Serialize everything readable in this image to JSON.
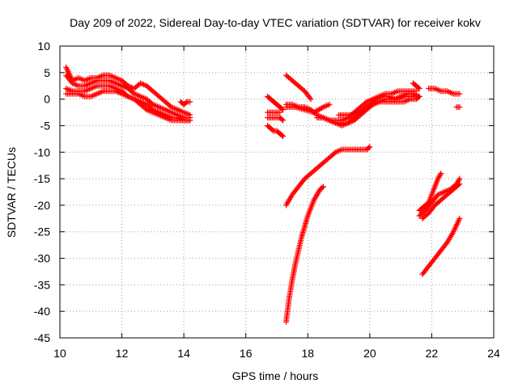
{
  "chart_data": {
    "type": "scatter",
    "title": "Day 209 of 2022, Sidereal Day-to-day VTEC variation (SDTVAR) for receiver kokv",
    "xlabel": "GPS time / hours",
    "ylabel": "SDTVAR / TECUs",
    "xlim": [
      10,
      24
    ],
    "ylim": [
      -45,
      10
    ],
    "xticks": [
      "10",
      "12",
      "14",
      "16",
      "18",
      "20",
      "22",
      "24"
    ],
    "yticks": [
      "10",
      "5",
      "0",
      "-5",
      "-10",
      "-15",
      "-20",
      "-25",
      "-30",
      "-35",
      "-40",
      "-45"
    ],
    "grid": true,
    "marker": "plus",
    "series_color": "#ff0000",
    "series": [
      {
        "x": [
          10.2,
          10.4,
          10.6,
          10.8,
          11.0,
          11.2,
          11.4,
          11.6,
          11.8,
          12.0,
          12.2,
          12.4,
          12.6,
          12.8,
          13.0,
          13.2,
          13.4,
          13.6,
          13.8,
          14.0,
          14.2
        ],
        "y": [
          6.0,
          3.5,
          4.0,
          3.5,
          4.0,
          4.0,
          4.5,
          4.5,
          4.0,
          3.5,
          2.5,
          2.0,
          3.0,
          2.5,
          1.5,
          0.5,
          -0.5,
          -1.5,
          -2.0,
          -2.5,
          -3.0
        ]
      },
      {
        "x": [
          10.2,
          10.4,
          10.6,
          10.8,
          11.0,
          11.2,
          11.4,
          11.6,
          11.8,
          12.0,
          12.2,
          12.4,
          12.6,
          12.8,
          13.0,
          13.2,
          13.4,
          13.6,
          13.8,
          14.0,
          14.2
        ],
        "y": [
          4.5,
          3.0,
          2.5,
          2.5,
          3.0,
          3.5,
          3.5,
          3.5,
          3.0,
          2.5,
          2.0,
          1.0,
          0.5,
          0.0,
          -1.0,
          -1.5,
          -2.0,
          -2.5,
          -3.0,
          -3.5,
          -3.5
        ]
      },
      {
        "x": [
          10.2,
          10.4,
          10.6,
          10.8,
          11.0,
          11.2,
          11.4,
          11.6,
          11.8,
          12.0,
          12.2,
          12.4,
          12.6,
          12.8,
          13.0,
          13.2,
          13.4,
          13.6,
          13.8,
          14.0,
          14.2
        ],
        "y": [
          2.0,
          1.5,
          1.5,
          1.5,
          2.0,
          2.5,
          2.5,
          2.5,
          2.0,
          1.5,
          0.5,
          0.0,
          -0.5,
          -1.0,
          -2.0,
          -2.5,
          -3.0,
          -3.5,
          -3.5,
          -4.0,
          -4.0
        ]
      },
      {
        "x": [
          10.2,
          10.4,
          10.6,
          10.8,
          11.0,
          11.2,
          11.4,
          11.6,
          11.8,
          12.0,
          12.2,
          12.4,
          12.6,
          12.8,
          13.0,
          13.2,
          13.4,
          13.6,
          13.8,
          14.0,
          14.2
        ],
        "y": [
          1.0,
          1.0,
          1.0,
          0.5,
          0.5,
          1.0,
          1.5,
          1.5,
          1.5,
          1.0,
          0.5,
          0.0,
          -1.0,
          -2.0,
          -2.5,
          -3.0,
          -3.5,
          -4.0,
          -4.0,
          -4.0,
          -4.0
        ]
      },
      {
        "x": [
          13.9,
          14.0,
          14.1,
          14.2
        ],
        "y": [
          -0.5,
          -1.0,
          -0.5,
          -0.5
        ]
      },
      {
        "x": [
          16.7,
          16.8,
          16.9,
          17.0,
          17.1,
          17.2
        ],
        "y": [
          0.5,
          0.0,
          -0.5,
          -1.0,
          -1.5,
          -2.0
        ]
      },
      {
        "x": [
          16.7,
          16.8,
          16.9,
          17.0,
          17.1,
          17.2
        ],
        "y": [
          -3.5,
          -3.5,
          -3.5,
          -3.5,
          -3.5,
          -4.0
        ]
      },
      {
        "x": [
          16.7,
          16.8,
          16.9,
          17.0,
          17.1,
          17.2
        ],
        "y": [
          -5.0,
          -5.5,
          -6.0,
          -6.0,
          -6.5,
          -7.0
        ]
      },
      {
        "x": [
          16.7,
          16.9,
          17.1
        ],
        "y": [
          -2.5,
          -2.5,
          -2.5
        ]
      },
      {
        "x": [
          17.3,
          17.5,
          17.7,
          17.9,
          18.1
        ],
        "y": [
          4.5,
          3.5,
          2.5,
          1.5,
          0.0
        ]
      },
      {
        "x": [
          17.3,
          17.6,
          17.9,
          18.2,
          18.5,
          18.7
        ],
        "y": [
          -1.5,
          -1.5,
          -2.0,
          -2.5,
          -1.5,
          -1.0
        ]
      },
      {
        "x": [
          17.3,
          17.5,
          17.7,
          17.9,
          18.1,
          18.3,
          18.5,
          18.7,
          18.9,
          19.1,
          19.3,
          19.5,
          19.7,
          19.9,
          20.1,
          20.3,
          20.5,
          20.7,
          20.9,
          21.1,
          21.3,
          21.5
        ],
        "y": [
          -1.0,
          -1.0,
          -1.5,
          -1.5,
          -2.0,
          -3.0,
          -3.5,
          -4.0,
          -4.0,
          -4.0,
          -3.5,
          -2.5,
          -1.5,
          -0.5,
          0.0,
          0.5,
          1.0,
          1.0,
          1.5,
          1.5,
          1.5,
          1.5
        ]
      },
      {
        "x": [
          18.3,
          18.5,
          18.7,
          18.9,
          19.1,
          19.3,
          19.5,
          19.7,
          19.9,
          20.1,
          20.3,
          20.5,
          20.7,
          20.9,
          21.1,
          21.3,
          21.5
        ],
        "y": [
          -3.5,
          -3.5,
          -4.0,
          -4.5,
          -4.5,
          -4.5,
          -3.5,
          -2.5,
          -1.5,
          -1.0,
          -0.5,
          0.0,
          0.0,
          0.0,
          0.5,
          0.5,
          0.5
        ]
      },
      {
        "x": [
          18.7,
          18.9,
          19.1,
          19.3,
          19.5,
          19.7,
          19.9,
          20.1,
          20.3,
          20.5,
          20.7,
          20.9,
          21.1,
          21.3,
          21.5,
          21.6
        ],
        "y": [
          -4.0,
          -4.5,
          -5.0,
          -4.5,
          -4.0,
          -3.0,
          -2.0,
          -1.0,
          -0.5,
          -0.5,
          -0.5,
          -0.5,
          -0.5,
          0.0,
          0.0,
          0.5
        ]
      },
      {
        "x": [
          19.0,
          19.2,
          19.4,
          19.6,
          19.8,
          20.0,
          20.2,
          20.4,
          20.6,
          20.8,
          21.0,
          21.2,
          21.4,
          21.6
        ],
        "y": [
          -3.0,
          -3.0,
          -3.0,
          -2.5,
          -2.0,
          -1.0,
          0.0,
          0.5,
          0.5,
          0.0,
          0.5,
          1.0,
          1.0,
          0.5
        ]
      },
      {
        "x": [
          21.4,
          21.5,
          21.6
        ],
        "y": [
          3.0,
          2.5,
          2.0
        ]
      },
      {
        "x": [
          17.3,
          17.5,
          17.7,
          17.9,
          18.1,
          18.3,
          18.5,
          18.7,
          18.9,
          19.1,
          19.3,
          19.5,
          19.7,
          19.9,
          20.0
        ],
        "y": [
          -20.0,
          -18.0,
          -16.5,
          -15.0,
          -14.0,
          -13.0,
          -12.0,
          -11.0,
          -10.0,
          -9.5,
          -9.5,
          -9.5,
          -9.5,
          -9.5,
          -9.0
        ]
      },
      {
        "x": [
          17.3,
          17.4,
          17.5,
          17.6,
          17.7,
          17.8,
          17.9,
          18.0,
          18.1,
          18.2,
          18.3,
          18.4,
          18.5
        ],
        "y": [
          -42.0,
          -37.5,
          -34.0,
          -31.0,
          -28.5,
          -26.0,
          -24.0,
          -22.0,
          -20.5,
          -19.0,
          -18.0,
          -17.0,
          -16.5
        ]
      },
      {
        "x": [
          21.9,
          22.1,
          22.3,
          22.5,
          22.7,
          22.9
        ],
        "y": [
          2.0,
          2.0,
          1.5,
          1.5,
          1.0,
          1.0
        ]
      },
      {
        "x": [
          22.8,
          22.9
        ],
        "y": [
          -1.5,
          -1.5
        ]
      },
      {
        "x": [
          21.6,
          21.8,
          22.0,
          22.2,
          22.4,
          22.6,
          22.8,
          22.9
        ],
        "y": [
          -22.0,
          -21.0,
          -19.5,
          -18.0,
          -17.5,
          -17.0,
          -16.0,
          -15.0
        ]
      },
      {
        "x": [
          21.6,
          21.7,
          21.8,
          21.9,
          22.0,
          22.1,
          22.2,
          22.3
        ],
        "y": [
          -21.0,
          -20.5,
          -20.0,
          -19.5,
          -18.0,
          -16.5,
          -15.0,
          -14.0
        ]
      },
      {
        "x": [
          21.7,
          21.9,
          22.1,
          22.3,
          22.5,
          22.7,
          22.9
        ],
        "y": [
          -22.5,
          -21.5,
          -20.0,
          -19.0,
          -18.0,
          -17.0,
          -16.0
        ]
      },
      {
        "x": [
          21.7,
          21.9,
          22.1,
          22.3,
          22.5,
          22.7,
          22.9
        ],
        "y": [
          -33.0,
          -31.5,
          -30.0,
          -28.5,
          -27.0,
          -25.0,
          -22.5
        ]
      }
    ]
  }
}
